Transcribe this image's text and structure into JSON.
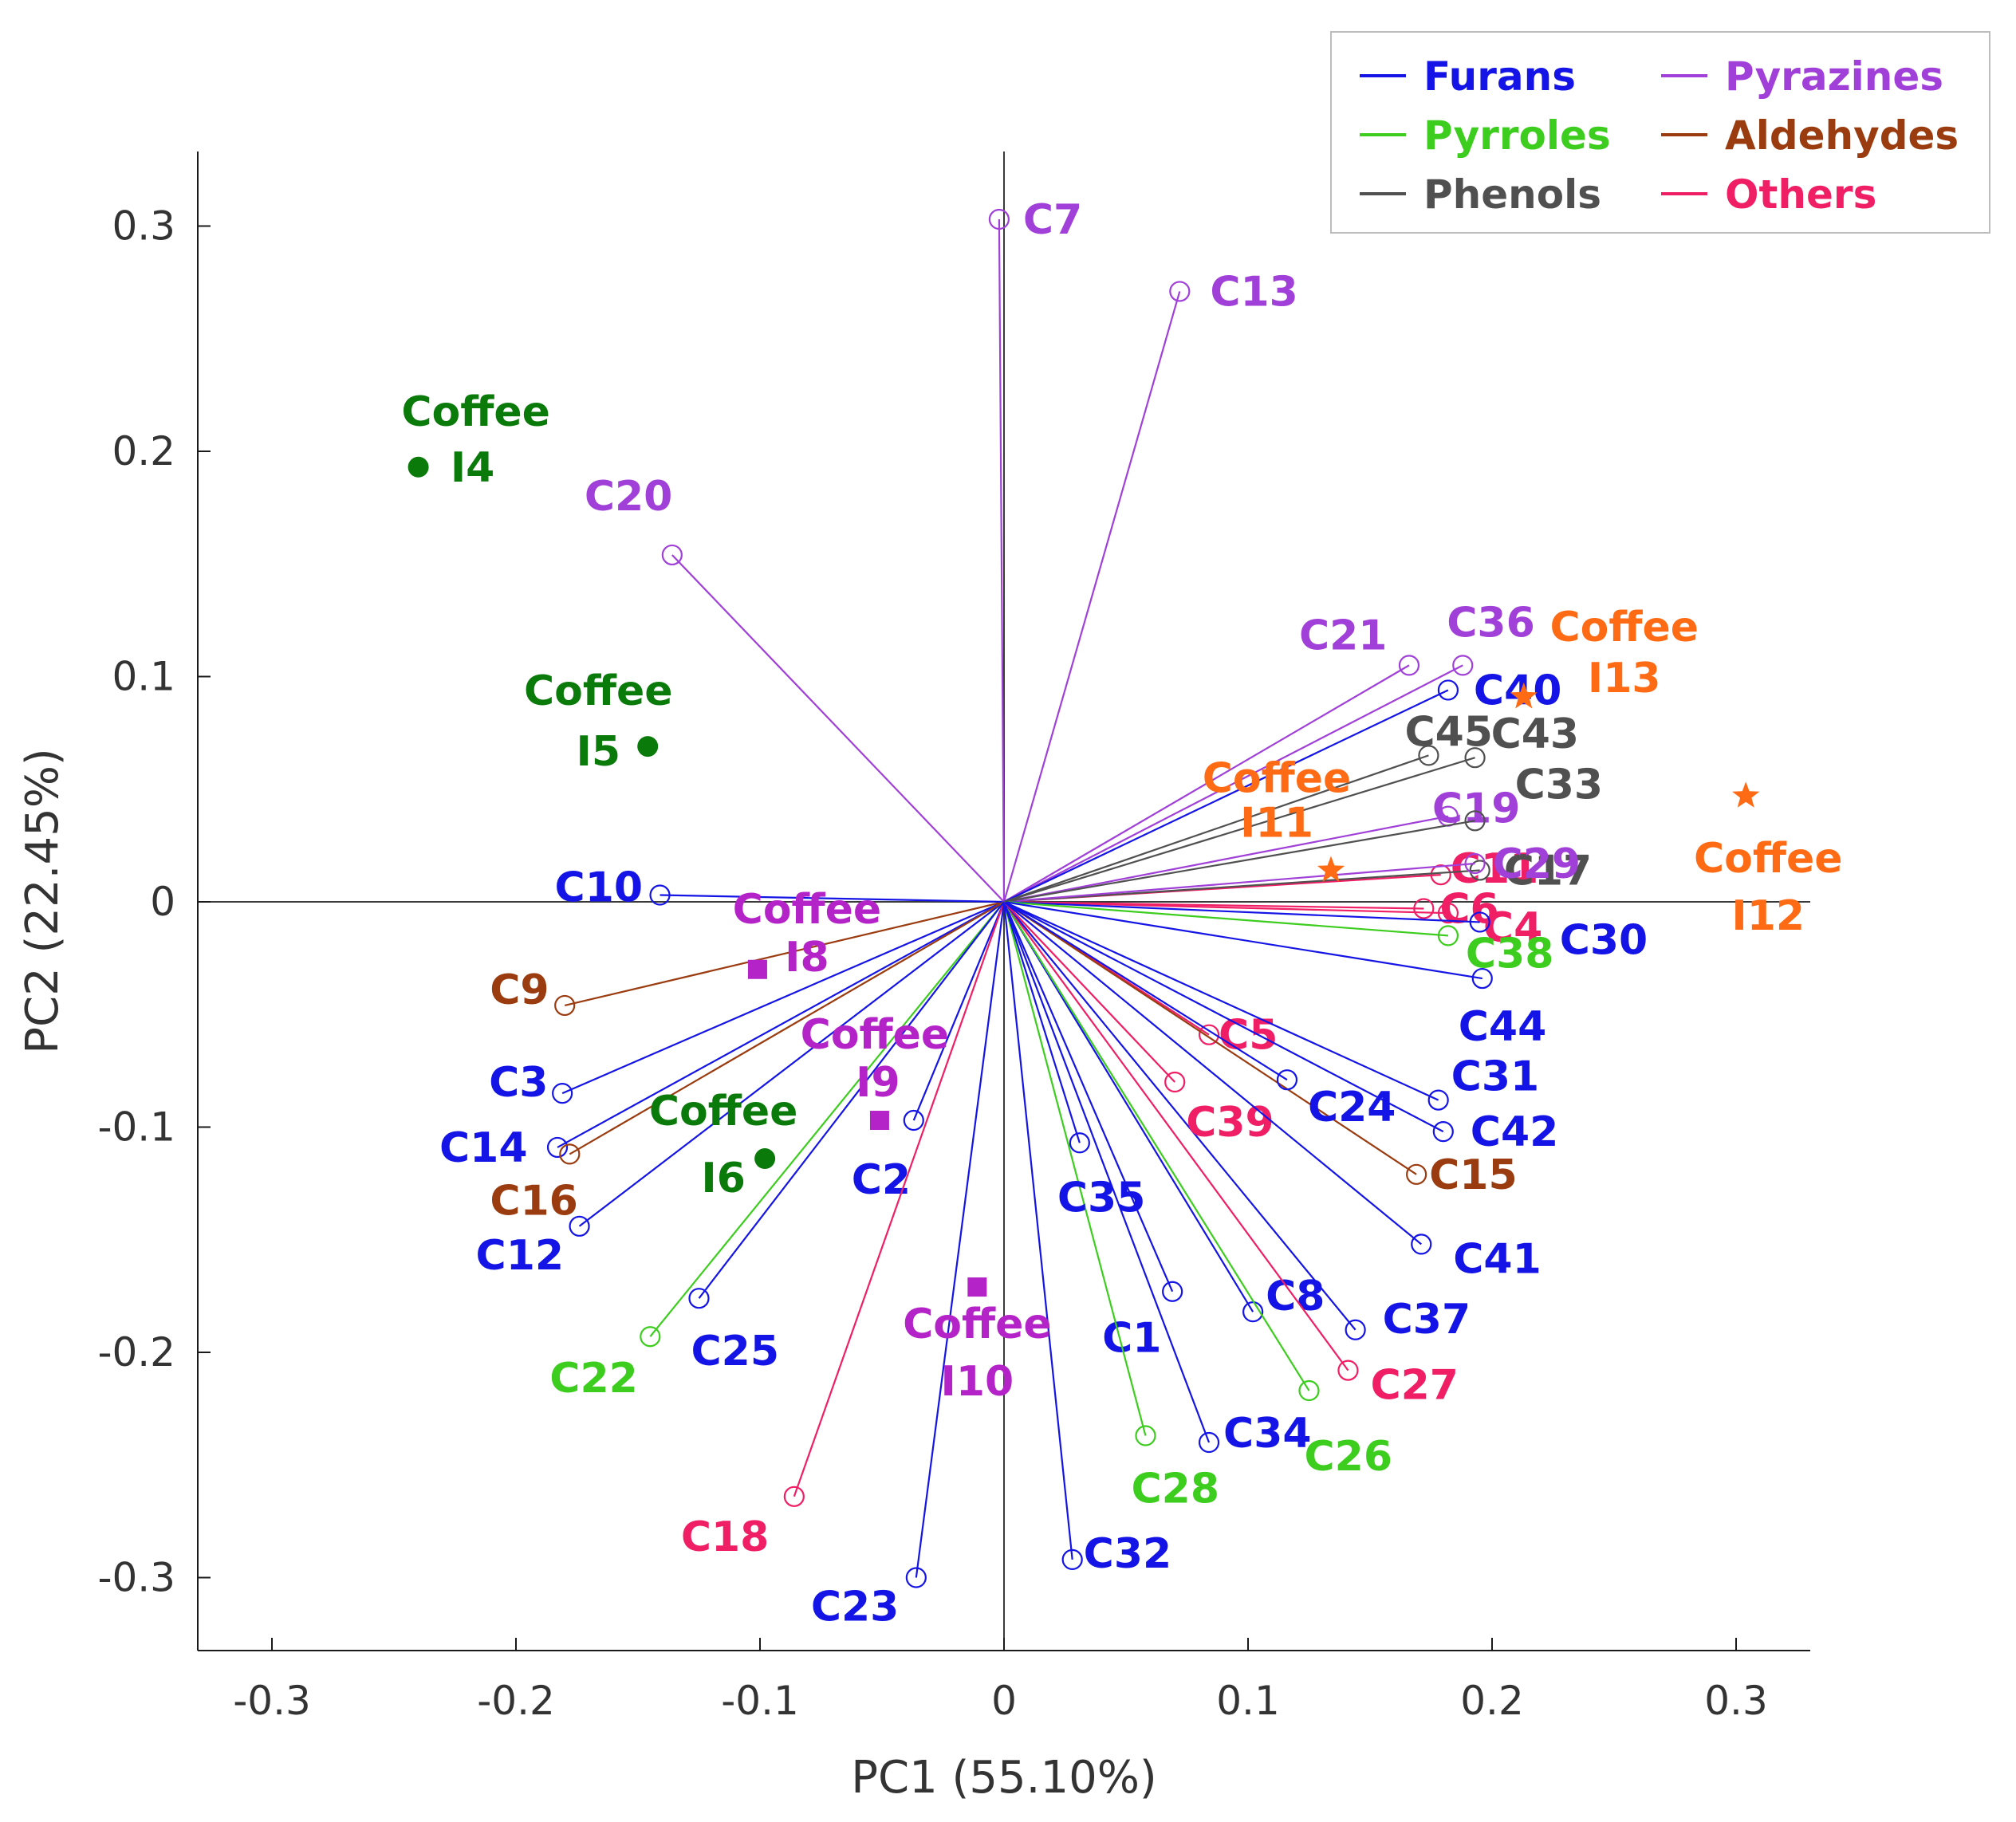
{
  "chart_data": {
    "type": "scatter",
    "subtype": "pca-biplot",
    "xlabel": "PC1 (55.10%)",
    "ylabel": "PC2 (22.45%)",
    "xlim": [
      -0.333,
      0.333
    ],
    "ylim": [
      -0.333,
      0.333
    ],
    "xticks": [
      "-0.3",
      "-0.2",
      "-0.1",
      "0",
      "0.1",
      "0.2",
      "0.3"
    ],
    "yticks": [
      "0.3",
      "0.2",
      "0.1",
      "0",
      "-0.1",
      "-0.2",
      "-0.3"
    ],
    "xtick_values": [
      -0.3,
      -0.2,
      -0.1,
      0,
      0.1,
      0.2,
      0.3
    ],
    "ytick_values": [
      0.3,
      0.2,
      0.1,
      0,
      -0.1,
      -0.2,
      -0.3
    ],
    "legend": {
      "position": "top-right",
      "entries": [
        {
          "group": "Furans",
          "color": "#1414e6"
        },
        {
          "group": "Pyrazines",
          "color": "#a040d8"
        },
        {
          "group": "Pyrroles",
          "color": "#3ccd1e"
        },
        {
          "group": "Aldehydes",
          "color": "#9a3c10"
        },
        {
          "group": "Phenols",
          "color": "#505050"
        },
        {
          "group": "Others",
          "color": "#f01e64"
        }
      ]
    },
    "group_colors": {
      "Furans": "#1414e6",
      "Pyrazines": "#a040d8",
      "Pyrroles": "#3ccd1e",
      "Aldehydes": "#9a3c10",
      "Phenols": "#505050",
      "Others": "#f01e64"
    },
    "loadings": [
      {
        "name": "C1",
        "group": "Furans",
        "x": 0.069,
        "y": -0.173
      },
      {
        "name": "C2",
        "group": "Furans",
        "x": -0.037,
        "y": -0.097
      },
      {
        "name": "C3",
        "group": "Furans",
        "x": -0.181,
        "y": -0.085
      },
      {
        "name": "C4",
        "group": "Others",
        "x": 0.182,
        "y": -0.005
      },
      {
        "name": "C5",
        "group": "Others",
        "x": 0.084,
        "y": -0.059
      },
      {
        "name": "C6",
        "group": "Others",
        "x": 0.172,
        "y": -0.003
      },
      {
        "name": "C7",
        "group": "Pyrazines",
        "x": -0.002,
        "y": 0.303
      },
      {
        "name": "C8",
        "group": "Furans",
        "x": 0.102,
        "y": -0.182
      },
      {
        "name": "C9",
        "group": "Aldehydes",
        "x": -0.18,
        "y": -0.046
      },
      {
        "name": "C10",
        "group": "Furans",
        "x": -0.141,
        "y": 0.003
      },
      {
        "name": "C11",
        "group": "Others",
        "x": 0.179,
        "y": 0.012
      },
      {
        "name": "C12",
        "group": "Furans",
        "x": -0.174,
        "y": -0.144
      },
      {
        "name": "C13",
        "group": "Pyrazines",
        "x": 0.072,
        "y": 0.271
      },
      {
        "name": "C14",
        "group": "Furans",
        "x": -0.183,
        "y": -0.109
      },
      {
        "name": "C15",
        "group": "Aldehydes",
        "x": 0.169,
        "y": -0.121
      },
      {
        "name": "C16",
        "group": "Aldehydes",
        "x": -0.178,
        "y": -0.112
      },
      {
        "name": "C17",
        "group": "Phenols",
        "x": 0.195,
        "y": 0.014
      },
      {
        "name": "C18",
        "group": "Others",
        "x": -0.086,
        "y": -0.264
      },
      {
        "name": "C19",
        "group": "Pyrazines",
        "x": 0.182,
        "y": 0.038
      },
      {
        "name": "C20",
        "group": "Pyrazines",
        "x": -0.136,
        "y": 0.154
      },
      {
        "name": "C21",
        "group": "Pyrazines",
        "x": 0.166,
        "y": 0.105
      },
      {
        "name": "C22",
        "group": "Pyrroles",
        "x": -0.145,
        "y": -0.193
      },
      {
        "name": "C23",
        "group": "Furans",
        "x": -0.036,
        "y": -0.3
      },
      {
        "name": "C24",
        "group": "Furans",
        "x": 0.116,
        "y": -0.079
      },
      {
        "name": "C25",
        "group": "Furans",
        "x": -0.125,
        "y": -0.176
      },
      {
        "name": "C26",
        "group": "Pyrroles",
        "x": 0.125,
        "y": -0.217
      },
      {
        "name": "C27",
        "group": "Others",
        "x": 0.141,
        "y": -0.208
      },
      {
        "name": "C28",
        "group": "Pyrroles",
        "x": 0.058,
        "y": -0.237
      },
      {
        "name": "C29",
        "group": "Pyrazines",
        "x": 0.193,
        "y": 0.017
      },
      {
        "name": "C30",
        "group": "Furans",
        "x": 0.195,
        "y": -0.009
      },
      {
        "name": "C31",
        "group": "Furans",
        "x": 0.178,
        "y": -0.088
      },
      {
        "name": "C32",
        "group": "Furans",
        "x": 0.028,
        "y": -0.292
      },
      {
        "name": "C33",
        "group": "Phenols",
        "x": 0.193,
        "y": 0.036
      },
      {
        "name": "C34",
        "group": "Furans",
        "x": 0.084,
        "y": -0.24
      },
      {
        "name": "C35",
        "group": "Furans",
        "x": 0.031,
        "y": -0.107
      },
      {
        "name": "C36",
        "group": "Pyrazines",
        "x": 0.188,
        "y": 0.105
      },
      {
        "name": "C37",
        "group": "Furans",
        "x": 0.144,
        "y": -0.19
      },
      {
        "name": "C38",
        "group": "Pyrroles",
        "x": 0.182,
        "y": -0.015
      },
      {
        "name": "C39",
        "group": "Others",
        "x": 0.07,
        "y": -0.08
      },
      {
        "name": "C40",
        "group": "Furans",
        "x": 0.182,
        "y": 0.094
      },
      {
        "name": "C41",
        "group": "Furans",
        "x": 0.171,
        "y": -0.152
      },
      {
        "name": "C42",
        "group": "Furans",
        "x": 0.18,
        "y": -0.102
      },
      {
        "name": "C43",
        "group": "Phenols",
        "x": 0.193,
        "y": 0.064
      },
      {
        "name": "C44",
        "group": "Furans",
        "x": 0.196,
        "y": -0.034
      },
      {
        "name": "C45",
        "group": "Phenols",
        "x": 0.174,
        "y": 0.065
      }
    ],
    "samples": [
      {
        "name": "Coffee I4",
        "line1": "Coffee",
        "line2": "I4",
        "marker": "circle",
        "color": "#0a7a0a",
        "x": -0.24,
        "y": 0.193
      },
      {
        "name": "Coffee I5",
        "line1": "Coffee",
        "line2": "I5",
        "marker": "circle",
        "color": "#0a7a0a",
        "x": -0.146,
        "y": 0.069
      },
      {
        "name": "Coffee I6",
        "line1": "Coffee",
        "line2": "I6",
        "marker": "circle",
        "color": "#0a7a0a",
        "x": -0.098,
        "y": -0.114
      },
      {
        "name": "Coffee I8",
        "line1": "Coffee",
        "line2": "I8",
        "marker": "square",
        "color": "#b423c8",
        "x": -0.101,
        "y": -0.03
      },
      {
        "name": "Coffee I9",
        "line1": "Coffee",
        "line2": "I9",
        "marker": "square",
        "color": "#b423c8",
        "x": -0.051,
        "y": -0.097
      },
      {
        "name": "Coffee I10",
        "line1": "Coffee",
        "line2": "I10",
        "marker": "square",
        "color": "#b423c8",
        "x": -0.011,
        "y": -0.171
      },
      {
        "name": "Coffee I11",
        "line1": "Coffee",
        "line2": "I11",
        "marker": "star",
        "color": "#ff6a14",
        "x": 0.134,
        "y": 0.014
      },
      {
        "name": "Coffee I12",
        "line1": "Coffee",
        "line2": "I12",
        "marker": "star",
        "color": "#ff6a14",
        "x": 0.304,
        "y": 0.047
      },
      {
        "name": "Coffee I13",
        "line1": "Coffee",
        "line2": "I13",
        "marker": "star",
        "color": "#ff6a14",
        "x": 0.213,
        "y": 0.091
      }
    ]
  }
}
